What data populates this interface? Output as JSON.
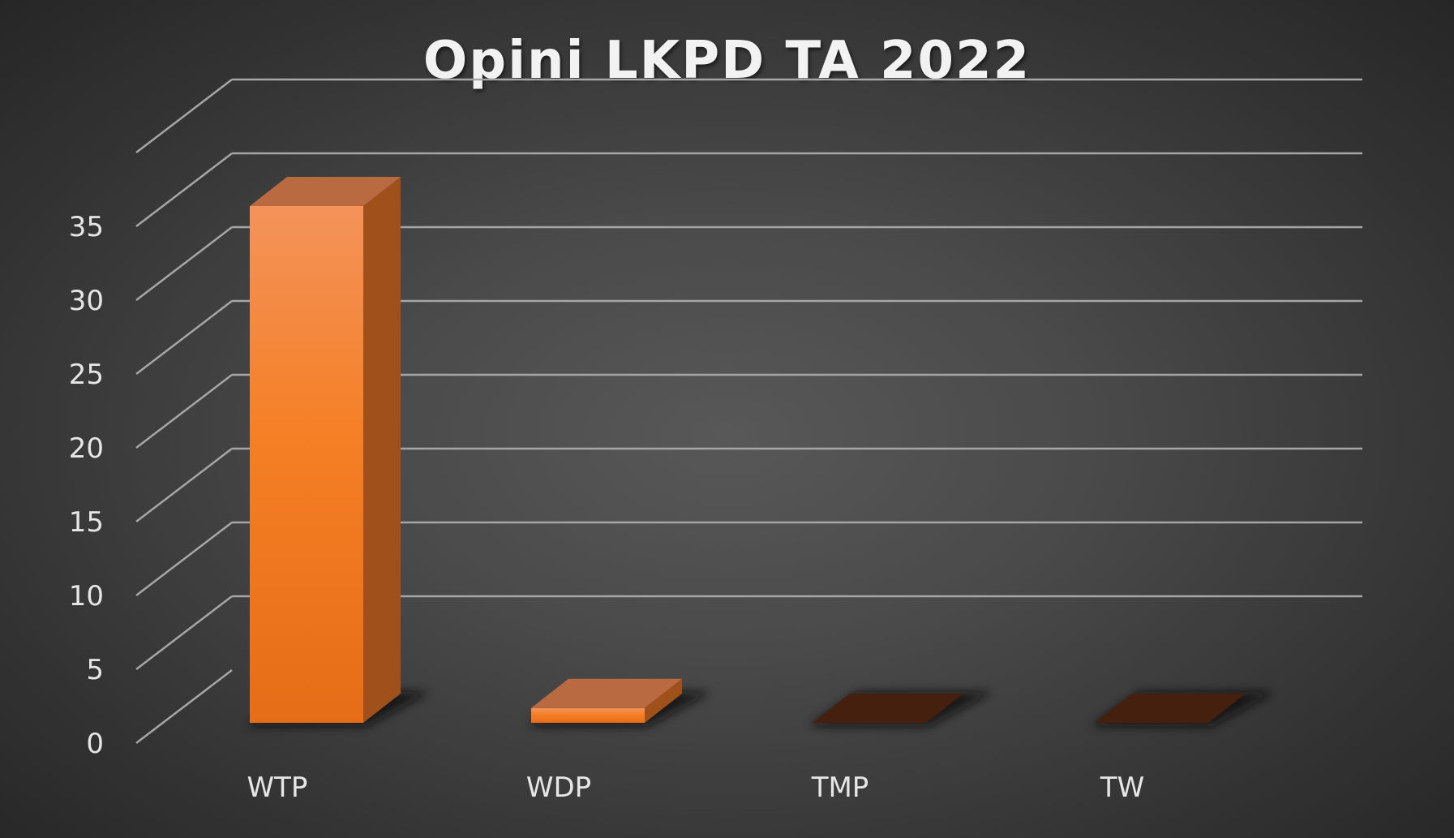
{
  "chart_data": {
    "type": "bar",
    "title": "Opini LKPD TA 2022",
    "categories": [
      "WTP",
      "WDP",
      "TMP",
      "TW"
    ],
    "values": [
      35,
      1,
      0,
      0
    ],
    "ylim": [
      0,
      40
    ],
    "yticks": [
      0,
      5,
      10,
      15,
      20,
      25,
      30,
      35
    ],
    "xlabel": "",
    "ylabel": "",
    "grid": true,
    "legend": "none",
    "style": "3d-column"
  },
  "colors": {
    "bar_front": "#f07820",
    "bar_front_light": "#f39a5c",
    "bar_top": "#b96a40",
    "bar_side": "#a0501a",
    "bar_zero": "#45200e",
    "gridline": "#a6a6a6",
    "text": "#e6e6e6"
  }
}
